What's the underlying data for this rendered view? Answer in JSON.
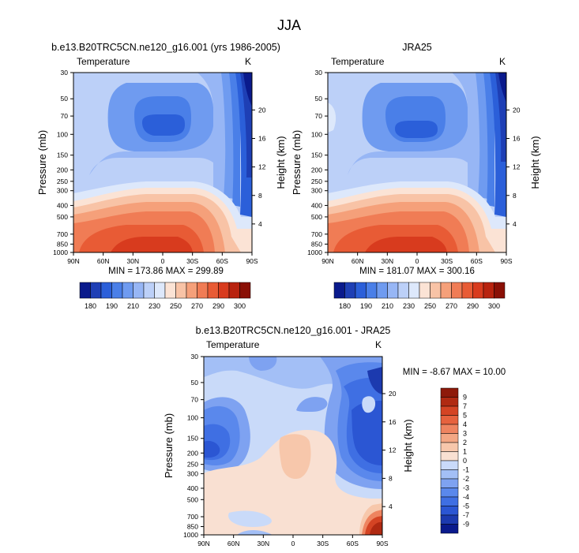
{
  "figure": {
    "title": "JJA"
  },
  "colors": {
    "model_palette": [
      "#0a1a8c",
      "#1e3fb5",
      "#2b5fd9",
      "#4a7fe8",
      "#6f9bf0",
      "#97b6f5",
      "#bcd0f8",
      "#dde8fb",
      "#fbe3d5",
      "#f8c3a6",
      "#f5a07a",
      "#f07c55",
      "#e85b35",
      "#d83b1e",
      "#b8230f",
      "#8a1006"
    ],
    "diff_palette": [
      "#0a1a8c",
      "#1c3aaf",
      "#2b56d3",
      "#3f6fe3",
      "#5a88ec",
      "#7ea2f1",
      "#a3bff6",
      "#c9daf9",
      "#f9e0d2",
      "#f7c7ab",
      "#f3a784",
      "#ee8460",
      "#e6623e",
      "#d44424",
      "#b02a12",
      "#8e1a0a"
    ]
  },
  "chart_data": [
    {
      "type": "heatmap",
      "title": "b.e13.B20TRC5CN.ne120_g16.001 (yrs 1986-2005)",
      "subtitle_left": "Temperature",
      "subtitle_right": "K",
      "ylabel": "Pressure (mb)",
      "ylabel_right": "Height (km)",
      "x_ticks": [
        "90N",
        "60N",
        "30N",
        "0",
        "30S",
        "60S",
        "90S"
      ],
      "y_ticks": [
        "30",
        "50",
        "70",
        "100",
        "150",
        "200",
        "250",
        "300",
        "400",
        "500",
        "700",
        "850",
        "1000"
      ],
      "y_right_ticks": [
        "20",
        "16",
        "12",
        "8",
        "4"
      ],
      "stats": "MIN = 173.86  MAX = 299.89",
      "colorbar_labels": [
        "180",
        "190",
        "210",
        "230",
        "250",
        "270",
        "290",
        "300"
      ]
    },
    {
      "type": "heatmap",
      "title": "JRA25",
      "subtitle_left": "Temperature",
      "subtitle_right": "K",
      "ylabel": "Pressure (mb)",
      "ylabel_right": "Height (km)",
      "x_ticks": [
        "90N",
        "60N",
        "30N",
        "0",
        "30S",
        "60S",
        "90S"
      ],
      "y_ticks": [
        "30",
        "50",
        "70",
        "100",
        "150",
        "200",
        "250",
        "300",
        "400",
        "500",
        "700",
        "850",
        "1000"
      ],
      "y_right_ticks": [
        "20",
        "16",
        "12",
        "8",
        "4"
      ],
      "stats": "MIN = 181.07  MAX = 300.16",
      "colorbar_labels": [
        "180",
        "190",
        "210",
        "230",
        "250",
        "270",
        "290",
        "300"
      ]
    },
    {
      "type": "heatmap",
      "title": "b.e13.B20TRC5CN.ne120_g16.001 - JRA25",
      "subtitle_left": "Temperature",
      "subtitle_right": "K",
      "ylabel": "Pressure (mb)",
      "ylabel_right": "Height (km)",
      "x_ticks": [
        "90N",
        "60N",
        "30N",
        "0",
        "30S",
        "60S",
        "90S"
      ],
      "y_ticks": [
        "30",
        "50",
        "70",
        "100",
        "150",
        "200",
        "250",
        "300",
        "400",
        "500",
        "700",
        "850",
        "1000"
      ],
      "y_right_ticks": [
        "20",
        "16",
        "12",
        "8",
        "4"
      ],
      "stats": "MIN = -8.67  MAX = 10.00",
      "colorbar_labels": [
        "9",
        "7",
        "5",
        "4",
        "3",
        "2",
        "1",
        "0",
        "-1",
        "-2",
        "-3",
        "-4",
        "-5",
        "-7",
        "-9"
      ]
    }
  ]
}
